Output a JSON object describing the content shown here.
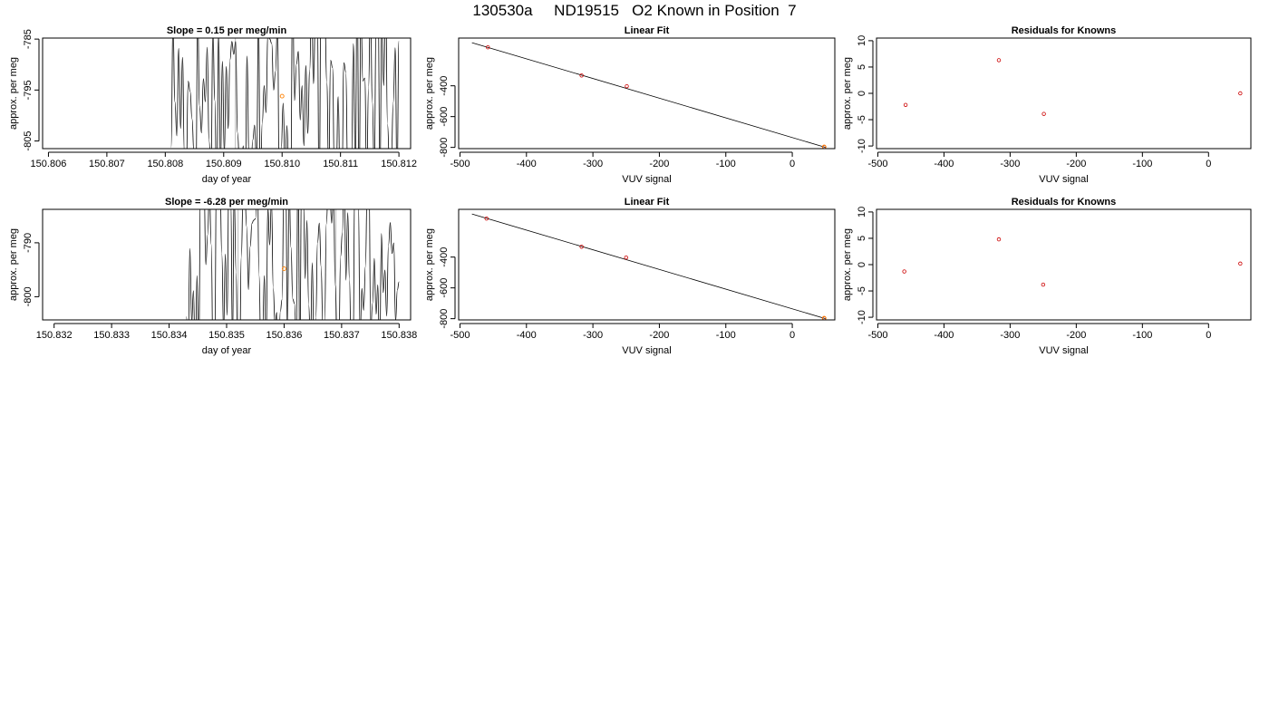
{
  "page_title": "130530a     ND19515   O2 Known in Position  7",
  "colors": {
    "trace": "#000000",
    "known_points": "#cc0000",
    "highlight_point": "#ff8000",
    "marker_line": "#bbbbbb"
  },
  "chart_data": [
    {
      "type": "line",
      "title": "Slope =  0.15  per meg/min",
      "xlabel": "day of year",
      "ylabel": "approx. per meg",
      "xlim": [
        150.8059,
        150.8122
      ],
      "ylim": [
        -806.5,
        -784.8
      ],
      "xticks": [
        "150.806",
        "150.807",
        "150.808",
        "150.809",
        "150.810",
        "150.811",
        "150.812"
      ],
      "xtick_values": [
        150.806,
        150.807,
        150.808,
        150.809,
        150.81,
        150.811,
        150.812
      ],
      "yticks": [
        "-785",
        "-795",
        "-805"
      ],
      "ytick_values": [
        -785,
        -795,
        -805
      ],
      "vline_x": 150.8092,
      "highlight_point": {
        "x": 150.81,
        "y": -796.2
      },
      "trace_x_range": [
        150.8081,
        150.812
      ],
      "trace_seed": 17
    },
    {
      "type": "scatter",
      "title": "Linear Fit",
      "xlabel": "VUV signal",
      "ylabel": "approx. per meg",
      "xlim": [
        -502,
        64
      ],
      "ylim": [
        -808,
        -90
      ],
      "xticks": [
        "-500",
        "-400",
        "-300",
        "-200",
        "-100",
        "0"
      ],
      "xtick_values": [
        -500,
        -400,
        -300,
        -200,
        -100,
        0
      ],
      "yticks": [
        "-400",
        "-600",
        "-800"
      ],
      "ytick_values": [
        -400,
        -600,
        -800
      ],
      "fit_line": {
        "x": [
          -482,
          50
        ],
        "y": [
          -120,
          -800
        ]
      },
      "points": [
        {
          "x": -458,
          "y": -150
        },
        {
          "x": -317,
          "y": -333
        },
        {
          "x": -249,
          "y": -403
        },
        {
          "x": 48,
          "y": -797
        }
      ],
      "highlight_point": {
        "x": 48,
        "y": -797
      }
    },
    {
      "type": "scatter",
      "title": "Residuals for Knowns",
      "xlabel": "VUV signal",
      "ylabel": "approx. per meg",
      "xlim": [
        -502,
        64
      ],
      "ylim": [
        -10.5,
        10.5
      ],
      "xticks": [
        "-500",
        "-400",
        "-300",
        "-200",
        "-100",
        "0"
      ],
      "xtick_values": [
        -500,
        -400,
        -300,
        -200,
        -100,
        0
      ],
      "yticks": [
        "-10",
        "-5",
        "0",
        "5",
        "10"
      ],
      "ytick_values": [
        -10,
        -5,
        0,
        5,
        10
      ],
      "points": [
        {
          "x": -458,
          "y": -2.2
        },
        {
          "x": -317,
          "y": 6.3
        },
        {
          "x": -249,
          "y": -3.9
        },
        {
          "x": 48,
          "y": 0.0
        }
      ]
    },
    {
      "type": "line",
      "title": "Slope =  -6.28  per meg/min",
      "xlabel": "day of year",
      "ylabel": "approx. per meg",
      "xlim": [
        150.8318,
        150.8382
      ],
      "ylim": [
        -804.3,
        -783.8
      ],
      "xticks": [
        "150.832",
        "150.833",
        "150.834",
        "150.835",
        "150.836",
        "150.837",
        "150.838"
      ],
      "xtick_values": [
        150.832,
        150.833,
        150.834,
        150.835,
        150.836,
        150.837,
        150.838
      ],
      "yticks": [
        "-790",
        "-800"
      ],
      "ytick_values": [
        -790,
        -800
      ],
      "vline_x": 150.8352,
      "vline2_x": 150.8369,
      "highlight_point": {
        "x": 150.836,
        "y": -794.8
      },
      "trace_x_range": [
        150.8343,
        150.838
      ],
      "trace_seed": 42
    },
    {
      "type": "scatter",
      "title": "Linear Fit",
      "xlabel": "VUV signal",
      "ylabel": "approx. per meg",
      "xlim": [
        -502,
        64
      ],
      "ylim": [
        -808,
        -90
      ],
      "xticks": [
        "-500",
        "-400",
        "-300",
        "-200",
        "-100",
        "0"
      ],
      "xtick_values": [
        -500,
        -400,
        -300,
        -200,
        -100,
        0
      ],
      "yticks": [
        "-400",
        "-600",
        "-800"
      ],
      "ytick_values": [
        -400,
        -600,
        -800
      ],
      "fit_line": {
        "x": [
          -482,
          50
        ],
        "y": [
          -120,
          -800
        ]
      },
      "points": [
        {
          "x": -460,
          "y": -150
        },
        {
          "x": -317,
          "y": -333
        },
        {
          "x": -250,
          "y": -403
        },
        {
          "x": 48,
          "y": -797
        }
      ],
      "highlight_point": {
        "x": 48,
        "y": -797
      }
    },
    {
      "type": "scatter",
      "title": "Residuals for Knowns",
      "xlabel": "VUV signal",
      "ylabel": "approx. per meg",
      "xlim": [
        -502,
        64
      ],
      "ylim": [
        -10.5,
        10.5
      ],
      "xticks": [
        "-500",
        "-400",
        "-300",
        "-200",
        "-100",
        "0"
      ],
      "xtick_values": [
        -500,
        -400,
        -300,
        -200,
        -100,
        0
      ],
      "yticks": [
        "-10",
        "-5",
        "0",
        "5",
        "10"
      ],
      "ytick_values": [
        -10,
        -5,
        0,
        5,
        10
      ],
      "points": [
        {
          "x": -460,
          "y": -1.3
        },
        {
          "x": -317,
          "y": 4.8
        },
        {
          "x": -250,
          "y": -3.8
        },
        {
          "x": 48,
          "y": 0.2
        }
      ]
    }
  ]
}
